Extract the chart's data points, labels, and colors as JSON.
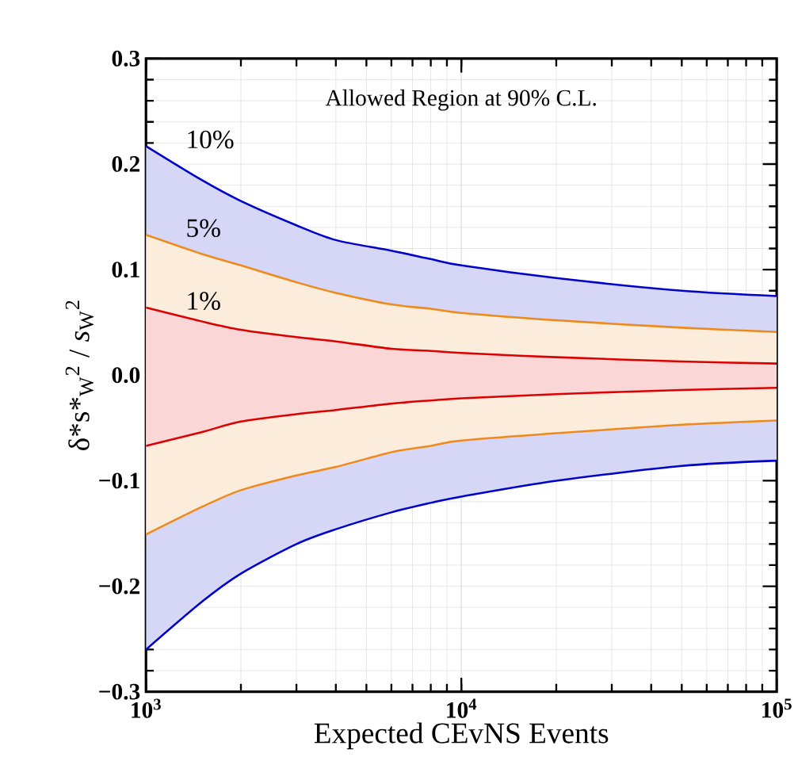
{
  "chart_data": {
    "type": "line",
    "xlabel": "Expected CEvNS Events",
    "ylabel": "δ*s*$_{W}$$^{2}$ / *s*$_{W}$$^{2}$",
    "annotations": [
      "Allowed Region at 90% C.L."
    ],
    "log": "x",
    "grid": true,
    "legend": false,
    "x": [
      1000,
      1500,
      2000,
      3000,
      4000,
      6000,
      8000,
      10000,
      20000,
      50000,
      100000
    ],
    "xlim": [
      1000,
      100000
    ],
    "xticks": [
      {
        "value": 1000,
        "label": "10$^{3}$"
      },
      {
        "value": 10000,
        "label": "10$^{4}$"
      },
      {
        "value": 100000,
        "label": "10$^{5}$"
      }
    ],
    "ylim": [
      -0.3,
      0.3
    ],
    "yticks": [
      {
        "value": -0.3,
        "label": "−0.3"
      },
      {
        "value": -0.2,
        "label": "−0.2"
      },
      {
        "value": -0.1,
        "label": "−0.1"
      },
      {
        "value": 0,
        "label": "0.0"
      },
      0.1,
      0.2,
      0.3
    ],
    "series": [
      {
        "name": "10%",
        "color": "#0000cc",
        "values": [
          0.217,
          0.185,
          0.165,
          0.142,
          0.128,
          0.118,
          0.11,
          0.104,
          0.092,
          0.08,
          0.075
        ],
        "lower": [
          -0.26,
          -0.215,
          -0.188,
          -0.16,
          -0.146,
          -0.13,
          -0.121,
          -0.115,
          -0.1,
          -0.086,
          -0.081
        ],
        "upper": [
          0.217,
          0.185,
          0.165,
          0.142,
          0.128,
          0.118,
          0.11,
          0.104,
          0.092,
          0.08,
          0.075
        ]
      },
      {
        "color": "#0000cc",
        "values": [
          -0.26,
          -0.215,
          -0.188,
          -0.16,
          -0.146,
          -0.13,
          -0.121,
          -0.115,
          -0.1,
          -0.086,
          -0.081
        ]
      },
      {
        "name": "5%",
        "color": "#ee8a1c",
        "values": [
          0.133,
          0.115,
          0.104,
          0.088,
          0.078,
          0.067,
          0.063,
          0.059,
          0.052,
          0.045,
          0.041
        ],
        "lower": [
          -0.151,
          -0.125,
          -0.109,
          -0.095,
          -0.087,
          -0.073,
          -0.067,
          -0.062,
          -0.055,
          -0.047,
          -0.043
        ],
        "upper": [
          0.133,
          0.115,
          0.104,
          0.088,
          0.078,
          0.067,
          0.063,
          0.059,
          0.052,
          0.045,
          0.041
        ]
      },
      {
        "color": "#ee8a1c",
        "values": [
          -0.151,
          -0.125,
          -0.109,
          -0.095,
          -0.087,
          -0.073,
          -0.067,
          -0.062,
          -0.055,
          -0.047,
          -0.043
        ]
      },
      {
        "name": "1%",
        "color": "#dd0000",
        "values": [
          0.064,
          0.051,
          0.043,
          0.036,
          0.032,
          0.025,
          0.023,
          0.021,
          0.017,
          0.013,
          0.011
        ],
        "lower": [
          -0.067,
          -0.054,
          -0.044,
          -0.037,
          -0.033,
          -0.027,
          -0.024,
          -0.022,
          -0.018,
          -0.014,
          -0.012
        ],
        "upper": [
          0.064,
          0.051,
          0.043,
          0.036,
          0.032,
          0.025,
          0.023,
          0.021,
          0.017,
          0.013,
          0.011
        ]
      },
      {
        "color": "#dd0000",
        "values": [
          -0.067,
          -0.054,
          -0.044,
          -0.037,
          -0.033,
          -0.027,
          -0.024,
          -0.022,
          -0.018,
          -0.014,
          -0.012
        ]
      }
    ]
  }
}
